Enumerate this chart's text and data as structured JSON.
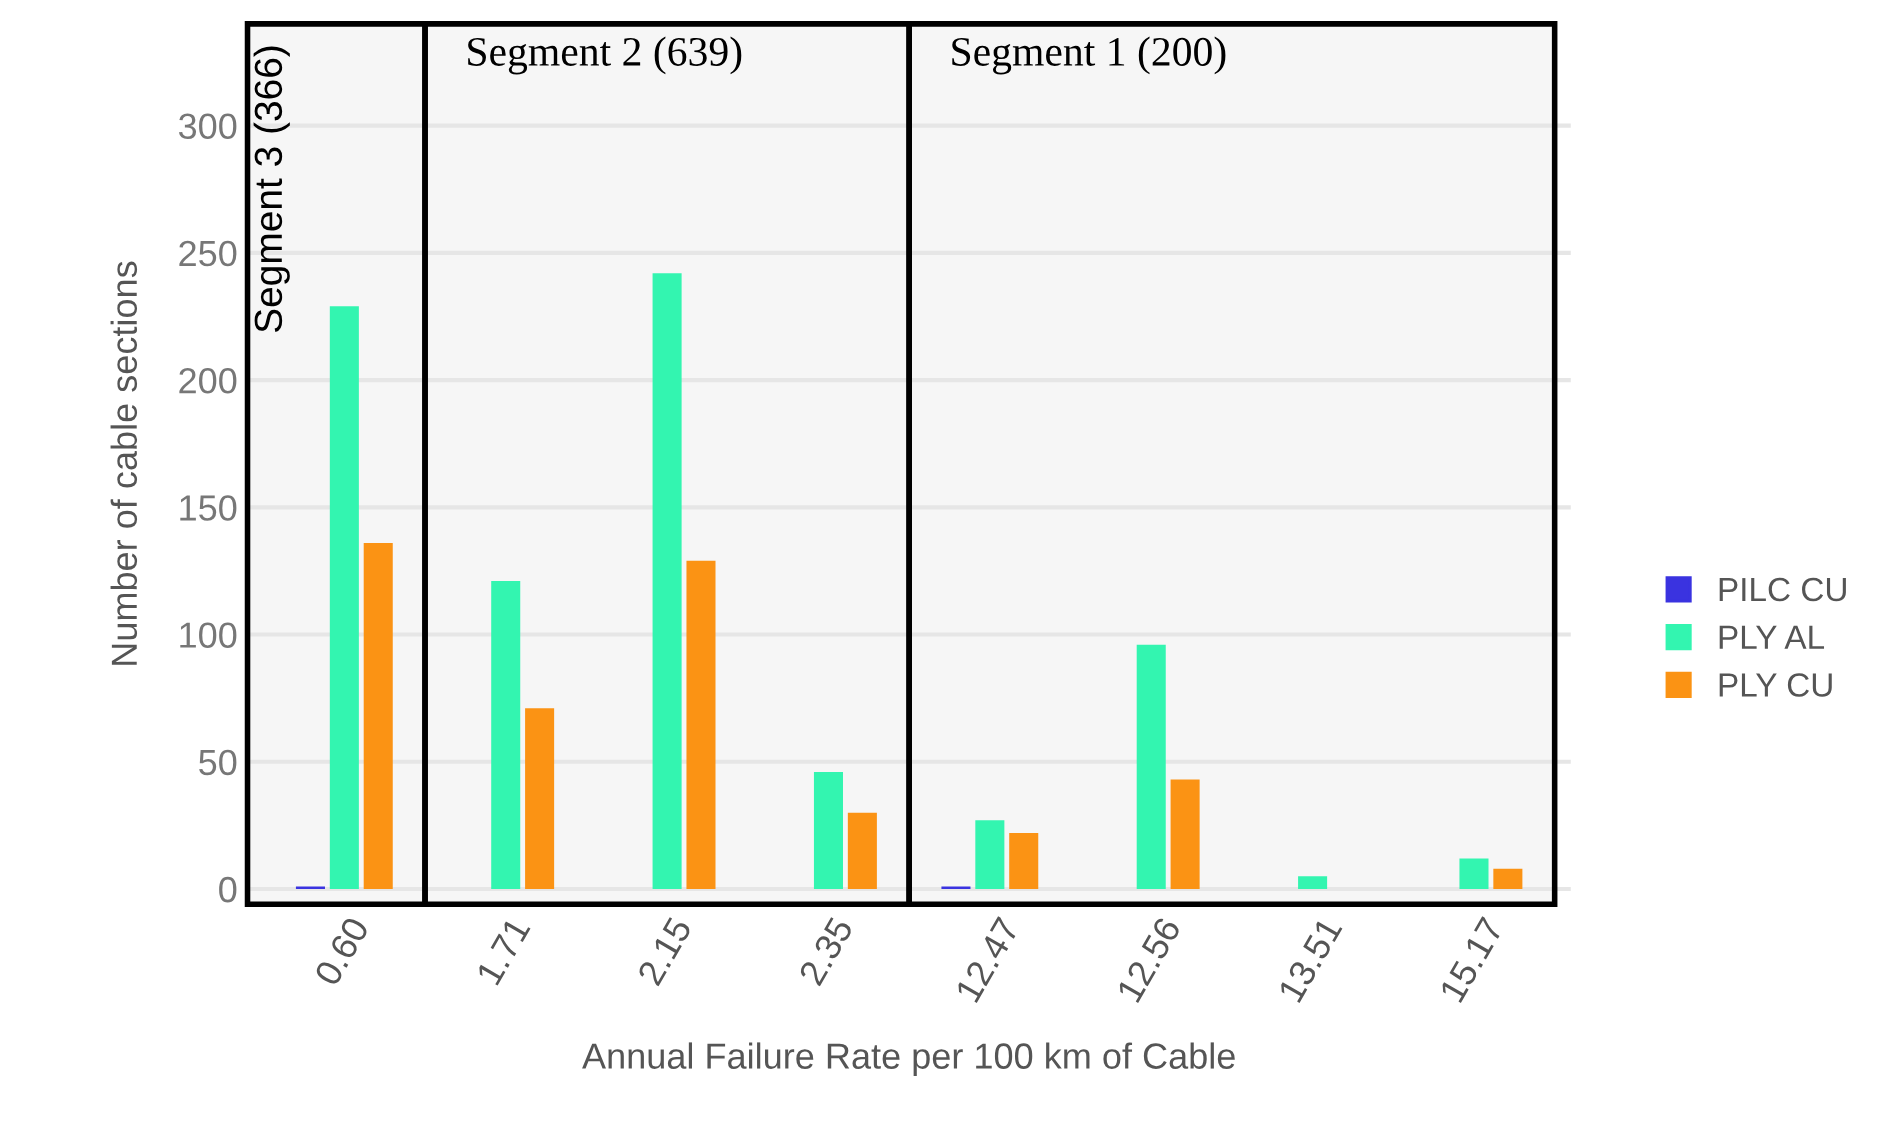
{
  "chart_data": {
    "type": "bar",
    "xlabel": "Annual Failure Rate per 100 km of Cable",
    "ylabel": "Number of cable sections",
    "categories": [
      "0.60",
      "1.71",
      "2.15",
      "2.35",
      "12.47",
      "12.56",
      "13.51",
      "15.17"
    ],
    "series": [
      {
        "name": "PILC CU",
        "color": "#3a33e0",
        "values": [
          1,
          null,
          null,
          null,
          1,
          null,
          null,
          null
        ]
      },
      {
        "name": "PLY AL",
        "color": "#33f5b0",
        "values": [
          229,
          121,
          242,
          46,
          27,
          96,
          5,
          12
        ]
      },
      {
        "name": "PLY CU",
        "color": "#fb9314",
        "values": [
          136,
          71,
          129,
          30,
          22,
          43,
          null,
          8
        ]
      }
    ],
    "ylim": [
      -6,
      340
    ],
    "yticks": [
      0,
      50,
      100,
      150,
      200,
      250,
      300
    ],
    "grid": "y",
    "legend": "right",
    "bands": [
      {
        "axis": "x",
        "from": "0.60",
        "to": "0.60",
        "label": "Segment 3 (366)",
        "color": "#000000"
      },
      {
        "axis": "x",
        "from": "1.71",
        "to": "2.35",
        "label": "Segment 2 (639)",
        "color": "#000000"
      },
      {
        "axis": "x",
        "from": "12.47",
        "to": "15.17",
        "label": "Segment 1 (200)",
        "color": "#000000"
      }
    ]
  }
}
